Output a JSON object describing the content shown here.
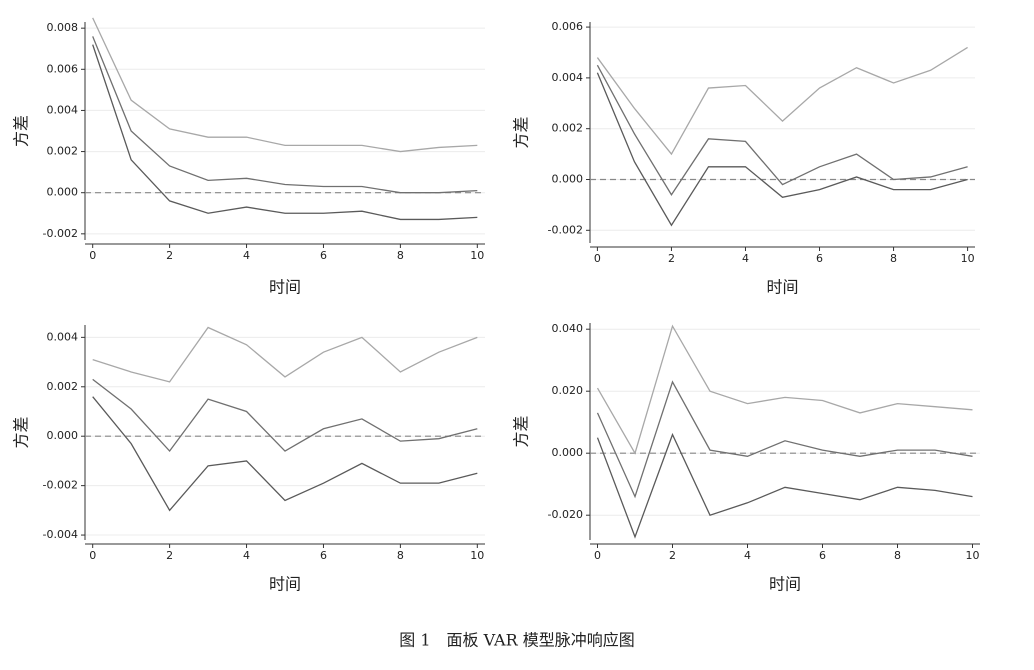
{
  "caption": "图 1　面板 VAR 模型脉冲响应图",
  "chart_data": [
    {
      "type": "line",
      "xlabel": "时间",
      "ylabel": "方差",
      "x": [
        0,
        1,
        2,
        3,
        4,
        5,
        6,
        7,
        8,
        9,
        10
      ],
      "xlim": [
        -0.2,
        10.2
      ],
      "xticks": [
        0,
        2,
        4,
        6,
        8,
        10
      ],
      "ylim": [
        -0.0023,
        0.0083
      ],
      "yticks": [
        -0.002,
        {
          "value": 0,
          "label": "0.000"
        },
        0.002,
        0.004,
        0.006,
        0.008
      ],
      "grid": true,
      "hline": 0,
      "series": [
        {
          "color": "#a8a8a8",
          "values": [
            0.0085,
            0.0045,
            0.0031,
            0.0027,
            0.0027,
            0.0023,
            0.0023,
            0.0023,
            0.002,
            0.0022,
            0.0023
          ]
        },
        {
          "color": "#707070",
          "values": [
            0.0076,
            0.003,
            0.0013,
            0.0006,
            0.0007,
            0.0004,
            0.0003,
            0.0003,
            0.0,
            0.0,
            0.0001
          ]
        },
        {
          "color": "#5a5a5a",
          "values": [
            0.0072,
            0.0016,
            -0.0004,
            -0.001,
            -0.0007,
            -0.001,
            -0.001,
            -0.0009,
            -0.0013,
            -0.0013,
            -0.0012
          ]
        }
      ]
    },
    {
      "type": "line",
      "xlabel": "时间",
      "ylabel": "方差",
      "x": [
        0,
        1,
        2,
        3,
        4,
        5,
        6,
        7,
        8,
        9,
        10
      ],
      "xlim": [
        -0.2,
        10.2
      ],
      "xticks": [
        0,
        2,
        4,
        6,
        8,
        10
      ],
      "ylim": [
        -0.0025,
        0.0062
      ],
      "yticks": [
        -0.002,
        {
          "value": 0,
          "label": "0.000"
        },
        0.002,
        0.004,
        0.006
      ],
      "grid": true,
      "hline": 0,
      "series": [
        {
          "color": "#a8a8a8",
          "values": [
            0.0048,
            0.0028,
            0.001,
            0.0036,
            0.0037,
            0.0023,
            0.0036,
            0.0044,
            0.0038,
            0.0043,
            0.0052
          ]
        },
        {
          "color": "#707070",
          "values": [
            0.0045,
            0.0018,
            -0.0006,
            0.0016,
            0.0015,
            -0.0002,
            0.0005,
            0.001,
            0.0,
            0.0001,
            0.0005
          ]
        },
        {
          "color": "#5a5a5a",
          "values": [
            0.0042,
            0.0007,
            -0.0018,
            0.0005,
            0.0005,
            -0.0007,
            -0.0004,
            0.0001,
            -0.0004,
            -0.0004,
            0.0
          ]
        }
      ]
    },
    {
      "type": "line",
      "xlabel": "时间",
      "ylabel": "方差",
      "x": [
        0,
        1,
        2,
        3,
        4,
        5,
        6,
        7,
        8,
        9,
        10
      ],
      "xlim": [
        -0.2,
        10.2
      ],
      "xticks": [
        0,
        2,
        4,
        6,
        8,
        10
      ],
      "ylim": [
        -0.0042,
        0.0045
      ],
      "yticks": [
        -0.004,
        -0.002,
        {
          "value": 0,
          "label": "0.000"
        },
        0.002,
        0.004
      ],
      "grid": true,
      "hline": 0,
      "series": [
        {
          "color": "#a8a8a8",
          "values": [
            0.0031,
            0.0026,
            0.0022,
            0.0044,
            0.0037,
            0.0024,
            0.0034,
            0.004,
            0.0026,
            0.0034,
            0.004
          ]
        },
        {
          "color": "#707070",
          "values": [
            0.0023,
            0.0011,
            -0.0006,
            0.0015,
            0.001,
            -0.0006,
            0.0003,
            0.0007,
            -0.0002,
            -0.0001,
            0.0003
          ]
        },
        {
          "color": "#5a5a5a",
          "values": [
            0.0016,
            -0.0003,
            -0.003,
            -0.0012,
            -0.001,
            -0.0026,
            -0.0019,
            -0.0011,
            -0.0019,
            -0.0019,
            -0.0015
          ]
        }
      ]
    },
    {
      "type": "line",
      "xlabel": "时间",
      "ylabel": "方差",
      "x": [
        0,
        1,
        2,
        3,
        4,
        5,
        6,
        7,
        8,
        9,
        10
      ],
      "xlim": [
        -0.2,
        10.2
      ],
      "xticks": [
        0,
        2,
        4,
        6,
        8,
        10
      ],
      "ylim": [
        -0.028,
        0.042
      ],
      "yticks": [
        {
          "value": -0.02,
          "label": "-0.020"
        },
        {
          "value": 0,
          "label": "0.000"
        },
        {
          "value": 0.02,
          "label": "0.020"
        },
        {
          "value": 0.04,
          "label": "0.040"
        }
      ],
      "grid": true,
      "hline": 0,
      "series": [
        {
          "color": "#a8a8a8",
          "values": [
            0.021,
            0.0,
            0.041,
            0.02,
            0.016,
            0.018,
            0.017,
            0.013,
            0.016,
            0.015,
            0.014
          ]
        },
        {
          "color": "#707070",
          "values": [
            0.013,
            -0.014,
            0.023,
            0.001,
            -0.001,
            0.004,
            0.001,
            -0.001,
            0.001,
            0.001,
            -0.001
          ]
        },
        {
          "color": "#5a5a5a",
          "values": [
            0.005,
            -0.027,
            0.006,
            -0.02,
            -0.016,
            -0.011,
            -0.013,
            -0.015,
            -0.011,
            -0.012,
            -0.014
          ]
        }
      ]
    }
  ]
}
